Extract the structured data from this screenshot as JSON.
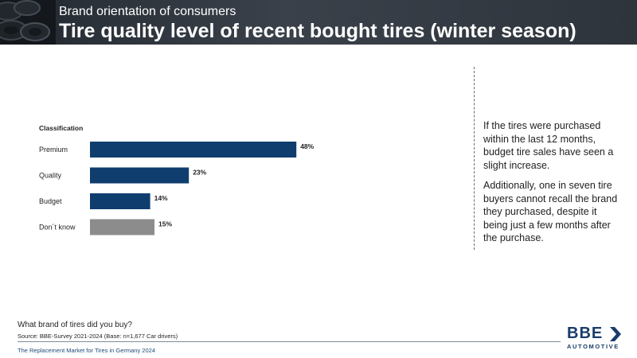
{
  "header": {
    "subtitle": "Brand orientation of consumers",
    "title": "Tire quality level of recent bought tires (winter season)"
  },
  "chart_data": {
    "type": "bar",
    "orientation": "horizontal",
    "legend_title": "Classification",
    "categories": [
      "Premium",
      "Quality",
      "Budget",
      "Don´t know"
    ],
    "values": [
      48,
      23,
      14,
      15
    ],
    "value_labels": [
      "48%",
      "23%",
      "14%",
      "15%"
    ],
    "unit": "%",
    "xlim": [
      0,
      100
    ],
    "colors": [
      "#0f3d6e",
      "#0f3d6e",
      "#0f3d6e",
      "#8c8c8c"
    ]
  },
  "notes": {
    "paragraph1": "If the tires were purchased within the last 12 months, budget tire sales have seen a slight increase.",
    "paragraph2": "Additionally, one in seven tire buyers cannot recall the brand they purchased, despite it being just a few months after the purchase."
  },
  "footer": {
    "question": "What brand of tires did you buy?",
    "source": "Source: BBE-Survey 2021-2024 (Base: n=1,677 Car drivers)",
    "report": "The Replacement Market for Tires in Germany 2024"
  },
  "logo": {
    "brand": "BBE",
    "tagline": "AUTOMOTIVE",
    "icon": "chevron-right-icon"
  }
}
